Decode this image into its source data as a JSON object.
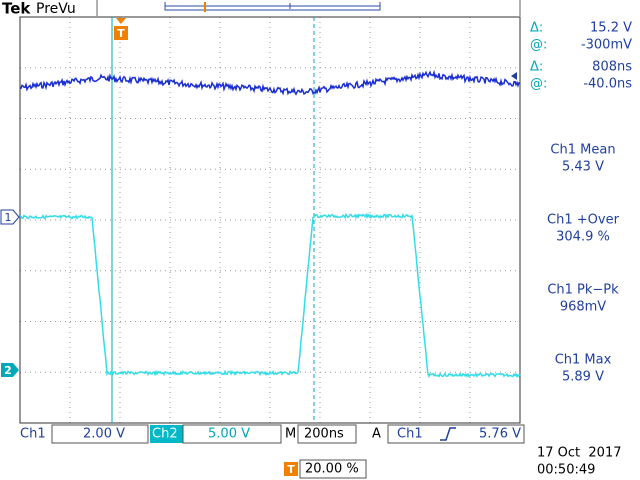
{
  "header": {
    "brand": "Tek",
    "mode": "PreVu"
  },
  "markers": {
    "trigger": "T",
    "ch1": "1",
    "ch2": "2",
    "trigger_position_icon": "T"
  },
  "cursors": {
    "delta_v_label": "Δ:",
    "delta_v": "15.2 V",
    "at_v_label": "@:",
    "at_v": "-300mV",
    "delta_t_label": "Δ:",
    "delta_t": "808ns",
    "at_t_label": "@:",
    "at_t": "-40.0ns"
  },
  "measurements": [
    {
      "label": "Ch1 Mean",
      "value": "5.43 V"
    },
    {
      "label": "Ch1 +Over",
      "value": "304.9 %"
    },
    {
      "label": "Ch1 Pk−Pk",
      "value": "968mV"
    },
    {
      "label": "Ch1 Max",
      "value": "5.89 V"
    }
  ],
  "status": {
    "ch1": "Ch1",
    "ch1_scale": "2.00 V",
    "ch2": "Ch2",
    "ch2_scale": "5.00 V",
    "timebase_label": "M",
    "timebase": "200ns",
    "trigger_label": "A",
    "trigger_source": "Ch1",
    "trigger_level": "5.76 V",
    "trigger_position": "20.00 %",
    "date": "17 Oct  2017",
    "time": "00:50:49"
  }
}
